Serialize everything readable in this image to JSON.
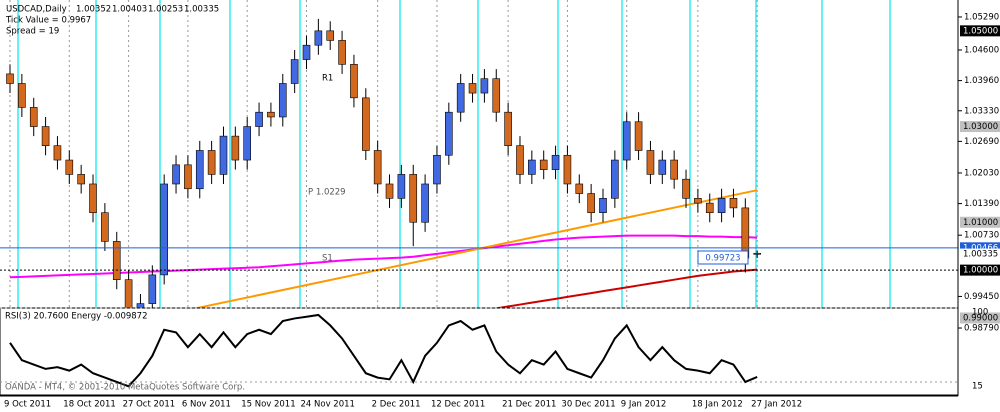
{
  "chart_data": {
    "type": "candlestick",
    "header": {
      "symbol": "USDCAD,Daily",
      "tick_value": "Tick Value = 0.9967",
      "spread": "Spread = 19"
    },
    "footer": "OANDA - MT4, © 2001-2010 MetaQuotes Software Corp.",
    "categories": [
      "9 Oct 2011",
      null,
      null,
      null,
      null,
      "18 Oct 2011",
      null,
      null,
      null,
      null,
      "27 Oct 2011",
      null,
      null,
      null,
      null,
      "6 Nov 2011",
      null,
      null,
      null,
      null,
      "15 Nov 2011",
      null,
      null,
      null,
      null,
      "24 Nov 2011",
      null,
      null,
      null,
      null,
      null,
      "2 Dec 2011",
      null,
      null,
      null,
      null,
      "12 Dec 2011",
      null,
      null,
      null,
      null,
      null,
      "21 Dec 2011",
      null,
      null,
      null,
      null,
      "30 Dec 2011",
      null,
      null,
      null,
      null,
      "9 Jan 2012",
      null,
      null,
      null,
      null,
      null,
      "18 Jan 2012",
      null,
      null,
      null,
      null,
      "27 Jan 2012"
    ],
    "open": [
      1.041,
      1.039,
      1.034,
      1.03,
      1.026,
      1.023,
      1.02,
      1.018,
      1.012,
      1.006,
      0.998,
      0.99,
      0.993,
      0.999,
      1.018,
      1.022,
      1.017,
      1.025,
      1.02,
      1.028,
      1.023,
      1.03,
      1.033,
      1.032,
      1.039,
      1.044,
      1.047,
      1.05,
      1.048,
      1.043,
      1.036,
      1.025,
      1.018,
      1.015,
      1.02,
      1.01,
      1.018,
      1.024,
      1.033,
      1.039,
      1.037,
      1.04,
      1.033,
      1.026,
      1.02,
      1.023,
      1.021,
      1.024,
      1.018,
      1.016,
      1.012,
      1.015,
      1.023,
      1.031,
      1.025,
      1.02,
      1.023,
      1.019,
      1.015,
      1.014,
      1.012,
      1.015,
      1.013,
      1.00352
    ],
    "high": [
      1.043,
      1.041,
      1.036,
      1.032,
      1.028,
      1.025,
      1.022,
      1.02,
      1.014,
      1.008,
      1.0,
      0.995,
      1.001,
      1.02,
      1.024,
      1.024,
      1.027,
      1.027,
      1.03,
      1.03,
      1.032,
      1.035,
      1.035,
      1.041,
      1.046,
      1.049,
      1.0525,
      1.052,
      1.05,
      1.045,
      1.038,
      1.027,
      1.02,
      1.022,
      1.022,
      1.02,
      1.026,
      1.035,
      1.041,
      1.041,
      1.042,
      1.042,
      1.035,
      1.028,
      1.025,
      1.025,
      1.026,
      1.026,
      1.02,
      1.018,
      1.017,
      1.025,
      1.033,
      1.033,
      1.027,
      1.025,
      1.025,
      1.021,
      1.017,
      1.016,
      1.017,
      1.017,
      1.015,
      1.00403
    ],
    "low": [
      1.037,
      1.032,
      1.028,
      1.024,
      1.021,
      1.018,
      1.016,
      1.01,
      1.004,
      0.996,
      0.9875,
      0.988,
      0.991,
      0.997,
      1.016,
      1.015,
      1.015,
      1.018,
      1.018,
      1.021,
      1.021,
      1.028,
      1.03,
      1.03,
      1.037,
      1.042,
      1.045,
      1.046,
      1.041,
      1.034,
      1.023,
      1.016,
      1.013,
      1.013,
      1.005,
      1.008,
      1.016,
      1.022,
      1.031,
      1.035,
      1.035,
      1.031,
      1.024,
      1.018,
      1.018,
      1.019,
      1.019,
      1.016,
      1.014,
      1.01,
      1.01,
      1.013,
      1.021,
      1.023,
      1.018,
      1.018,
      1.017,
      1.013,
      1.012,
      1.01,
      1.01,
      1.011,
      0.9995,
      1.00253
    ],
    "close": [
      1.039,
      1.034,
      1.03,
      1.026,
      1.023,
      1.02,
      1.018,
      1.012,
      1.006,
      0.998,
      0.99,
      0.993,
      0.999,
      1.018,
      1.022,
      1.017,
      1.025,
      1.02,
      1.028,
      1.023,
      1.03,
      1.033,
      1.032,
      1.039,
      1.044,
      1.047,
      1.05,
      1.048,
      1.043,
      1.036,
      1.025,
      1.018,
      1.015,
      1.02,
      1.01,
      1.018,
      1.024,
      1.033,
      1.039,
      1.037,
      1.04,
      1.033,
      1.026,
      1.02,
      1.023,
      1.021,
      1.024,
      1.018,
      1.016,
      1.012,
      1.015,
      1.023,
      1.031,
      1.025,
      1.02,
      1.023,
      1.019,
      1.015,
      1.014,
      1.012,
      1.015,
      1.013,
      1.0025,
      1.00335
    ],
    "up_color": "#4169e1",
    "down_color": "#d2691e",
    "lines": [
      {
        "color": "#ff00ff",
        "values": [
          0.9985,
          0.9986,
          0.9987,
          0.9988,
          0.9989,
          0.999,
          0.9991,
          0.9992,
          0.9993,
          0.9994,
          0.9995,
          0.9996,
          0.9997,
          0.9998,
          0.9999,
          1.0,
          1.0001,
          1.0002,
          1.0003,
          1.0004,
          1.0005,
          1.0006,
          1.0008,
          1.001,
          1.0012,
          1.0014,
          1.0016,
          1.0018,
          1.002,
          1.0022,
          1.0023,
          1.0024,
          1.0025,
          1.0026,
          1.0028,
          1.0031,
          1.0034,
          1.0037,
          1.004,
          1.0043,
          1.0046,
          1.0049,
          1.0052,
          1.0055,
          1.0058,
          1.0061,
          1.0064,
          1.0066,
          1.0068,
          1.0069,
          1.007,
          1.0071,
          1.0072,
          1.0072,
          1.0072,
          1.0072,
          1.0072,
          1.0071,
          1.0071,
          1.007,
          1.007,
          1.0069,
          1.0069,
          1.0068
        ]
      },
      {
        "color": "#cc0000",
        "values": [
          null,
          null,
          null,
          null,
          null,
          null,
          null,
          null,
          null,
          null,
          null,
          null,
          null,
          null,
          null,
          null,
          null,
          null,
          null,
          null,
          null,
          null,
          null,
          null,
          null,
          null,
          null,
          null,
          null,
          0.987,
          0.9875,
          0.988,
          0.9884,
          0.9888,
          0.9892,
          0.9896,
          0.99,
          0.9904,
          0.9908,
          0.9912,
          0.9916,
          0.992,
          0.9924,
          0.9928,
          0.9932,
          0.9936,
          0.994,
          0.9944,
          0.9948,
          0.9952,
          0.9956,
          0.996,
          0.9964,
          0.9968,
          0.9972,
          0.9976,
          0.998,
          0.9984,
          0.9988,
          0.9991,
          0.9994,
          0.9997,
          0.9999,
          1.0001
        ]
      },
      {
        "color": "#ff9900",
        "values": [
          null,
          null,
          null,
          null,
          null,
          null,
          null,
          0.9875,
          null,
          null,
          null,
          null,
          null,
          null,
          null,
          null,
          null,
          null,
          null,
          null,
          null,
          null,
          null,
          null,
          null,
          null,
          null,
          null,
          null,
          null,
          null,
          null,
          null,
          null,
          null,
          null,
          null,
          null,
          null,
          null,
          null,
          null,
          null,
          null,
          null,
          null,
          null,
          null,
          null,
          null,
          null,
          null,
          null,
          null,
          null,
          null,
          null,
          null,
          null,
          null,
          null,
          null,
          null,
          1.0167
        ]
      }
    ],
    "ylim": [
      0.98665,
      1.0554
    ],
    "yticks": [
      {
        "value": 1.0529,
        "label": "1.05290"
      },
      {
        "value": 1.046,
        "label": "1.04600"
      },
      {
        "value": 1.0396,
        "label": "1.03960"
      },
      {
        "value": 1.0333,
        "label": "1.03330"
      },
      {
        "value": 1.0269,
        "label": "1.02690"
      },
      {
        "value": 1.0203,
        "label": "1.02030"
      },
      {
        "value": 1.0139,
        "label": "1.01390"
      },
      {
        "value": 1.0073,
        "label": "1.00730"
      },
      {
        "value": 0.9945,
        "label": "0.99450"
      },
      {
        "value": 0.9879,
        "label": "0.98790"
      }
    ],
    "price_labels": [
      {
        "value": 1.05,
        "label": "1.05000",
        "color": "#000000"
      },
      {
        "value": 1.03,
        "label": "1.03000",
        "color": "#c0c0c0"
      },
      {
        "value": 1.01,
        "label": "1.01000",
        "color": "#c0c0c0"
      },
      {
        "value": 1.00466,
        "label": "1.00466",
        "color": "#1f5fd8"
      },
      {
        "value": 1.00335,
        "label": "1.00335",
        "color": "#ffffff"
      },
      {
        "value": 1.0,
        "label": "1.00000",
        "color": "#000000"
      },
      {
        "value": 0.99,
        "label": "0.99000",
        "color": "#c0c0c0"
      }
    ],
    "annotations": {
      "r1": "R1",
      "pivot": "P 1.0229",
      "s1": "S1",
      "low_box": "0.99723"
    },
    "rsi": {
      "title": "RSI(3) 20.7600  Energy -0.009872",
      "ylim": [
        0,
        100
      ],
      "yticks": [
        100,
        15
      ],
      "color": "#000000",
      "values": [
        60,
        40,
        35,
        30,
        32,
        28,
        35,
        25,
        20,
        15,
        10,
        25,
        45,
        75,
        72,
        55,
        70,
        55,
        72,
        55,
        70,
        75,
        70,
        85,
        88,
        90,
        92,
        80,
        65,
        45,
        25,
        20,
        18,
        40,
        15,
        45,
        60,
        80,
        85,
        75,
        80,
        50,
        35,
        25,
        40,
        35,
        50,
        30,
        25,
        20,
        40,
        65,
        80,
        55,
        40,
        55,
        40,
        30,
        28,
        25,
        40,
        35,
        15,
        20.76
      ]
    }
  }
}
